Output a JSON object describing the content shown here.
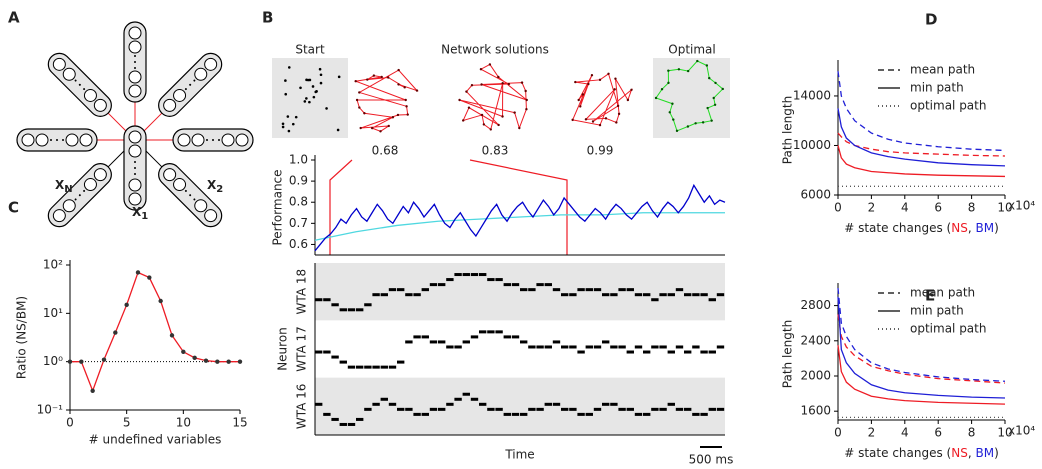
{
  "panel_labels": [
    "A",
    "B",
    "C",
    "D",
    "E"
  ],
  "diagram": {
    "labels": [
      {
        "main": "X",
        "sub": "N′"
      },
      {
        "main": "X",
        "sub": "1"
      },
      {
        "main": "X",
        "sub": "2"
      }
    ]
  },
  "network_solutions": {
    "start": "Start",
    "title": "Network solutions",
    "optimal": "Optimal",
    "scores": [
      0.68,
      0.83,
      0.99
    ]
  },
  "chart_data": [
    {
      "type": "line",
      "ylabel": "Performance",
      "ylim": [
        0.55,
        1.0
      ],
      "yticks": [
        0.6,
        0.7,
        0.8,
        0.9,
        {
          "value": 1,
          "label": "1.0"
        }
      ],
      "series": [
        {
          "color": "#4fd8e0",
          "values": [
            0.62,
            0.66,
            0.69,
            0.71,
            0.72,
            0.73,
            0.74,
            0.74,
            0.75,
            0.75,
            0.75
          ]
        },
        {
          "color": "#0000cc",
          "values": [
            0.57,
            0.6,
            0.63,
            0.65,
            0.68,
            0.72,
            0.7,
            0.74,
            0.77,
            0.73,
            0.71,
            0.75,
            0.79,
            0.76,
            0.72,
            0.7,
            0.74,
            0.78,
            0.75,
            0.8,
            0.77,
            0.73,
            0.76,
            0.79,
            0.74,
            0.7,
            0.68,
            0.72,
            0.75,
            0.71,
            0.67,
            0.64,
            0.68,
            0.72,
            0.76,
            0.79,
            0.74,
            0.71,
            0.75,
            0.78,
            0.8,
            0.76,
            0.73,
            0.77,
            0.81,
            0.78,
            0.74,
            0.77,
            0.82,
            0.79,
            0.76,
            0.73,
            0.71,
            0.74,
            0.77,
            0.75,
            0.72,
            0.76,
            0.79,
            0.77,
            0.74,
            0.72,
            0.75,
            0.78,
            0.8,
            0.76,
            0.73,
            0.77,
            0.8,
            0.78,
            0.75,
            0.78,
            0.82,
            0.88,
            0.84,
            0.8,
            0.83,
            0.79,
            0.81,
            0.8
          ]
        }
      ]
    },
    {
      "type": "raster",
      "ylabel": "Neuron",
      "xlabel": "Time",
      "scale_bar": "500 ms",
      "rows": [
        {
          "label": "WTA 18",
          "values": [
            3,
            3,
            2,
            1,
            1,
            1,
            2,
            4,
            4,
            5,
            5,
            4,
            4,
            5,
            6,
            6,
            7,
            8,
            8,
            8,
            8,
            7,
            7,
            6,
            6,
            5,
            5,
            6,
            6,
            5,
            4,
            4,
            5,
            5,
            5,
            4,
            4,
            5,
            5,
            4,
            4,
            3,
            4,
            4,
            5,
            4,
            4,
            4,
            3,
            4
          ]
        },
        {
          "label": "WTA 17",
          "values": [
            4,
            4,
            3,
            2,
            1,
            1,
            1,
            1,
            1,
            1,
            2,
            6,
            7,
            7,
            6,
            6,
            5,
            5,
            6,
            7,
            8,
            8,
            8,
            7,
            7,
            6,
            5,
            5,
            5,
            6,
            5,
            5,
            4,
            5,
            5,
            6,
            5,
            5,
            4,
            5,
            4,
            5,
            5,
            4,
            5,
            4,
            5,
            4,
            4,
            5
          ]
        },
        {
          "label": "WTA 16",
          "values": [
            5,
            3,
            2,
            1,
            1,
            2,
            4,
            5,
            6,
            5,
            4,
            4,
            3,
            3,
            4,
            4,
            5,
            6,
            7,
            6,
            5,
            4,
            4,
            3,
            3,
            3,
            4,
            4,
            5,
            5,
            4,
            4,
            3,
            3,
            4,
            5,
            5,
            4,
            4,
            3,
            3,
            4,
            4,
            5,
            4,
            4,
            3,
            3,
            4,
            4
          ]
        }
      ]
    },
    {
      "type": "line",
      "xlabel": "# undefined variables",
      "ylabel": "Ratio (NS/BM)",
      "ylog": true,
      "hline": 1,
      "xlim": [
        0,
        15
      ],
      "xticks": [
        0,
        5,
        10,
        15
      ],
      "ylim": [
        0.1,
        100
      ],
      "yticks": [
        {
          "value": 0.1,
          "label": "10⁻¹"
        },
        {
          "value": 1,
          "label": "10⁰"
        },
        {
          "value": 10,
          "label": "10¹"
        },
        {
          "value": 100,
          "label": "10²"
        }
      ],
      "x": [
        0,
        1,
        2,
        3,
        4,
        5,
        6,
        7,
        8,
        9,
        10,
        11,
        12,
        13,
        14,
        15
      ],
      "series": [
        {
          "color": "#ee1c25",
          "markers": true,
          "values": [
            1,
            1,
            0.25,
            1.1,
            4,
            15,
            70,
            55,
            18,
            3.5,
            1.6,
            1.2,
            1.05,
            1,
            1,
            1
          ]
        }
      ]
    },
    {
      "type": "line",
      "ylabel": "Path length",
      "xlabel_parts": [
        {
          "text": "# state changes ("
        },
        {
          "text": "NS",
          "color": "#ee1c25"
        },
        {
          "text": ", "
        },
        {
          "text": "BM",
          "color": "#1f1fd6"
        },
        {
          "text": ")"
        }
      ],
      "xlabel_suffix": "x10⁴",
      "xlim": [
        0,
        10
      ],
      "xticks": [
        0,
        2,
        4,
        6,
        8,
        10
      ],
      "ylim": [
        6000,
        16500
      ],
      "yticks": [
        6000,
        10000,
        14000
      ],
      "legend": [
        {
          "label": "mean path",
          "dash": "6,4"
        },
        {
          "label": "min path",
          "dash": ""
        },
        {
          "label": "optimal path",
          "dash": "1,3"
        }
      ],
      "x": [
        0,
        0.2,
        0.5,
        1,
        2,
        3,
        4,
        6,
        8,
        10
      ],
      "series": [
        {
          "color": "#1f1fd6",
          "dash": "6,4",
          "values": [
            16000,
            14000,
            13000,
            12000,
            11000,
            10500,
            10200,
            9900,
            9700,
            9600
          ]
        },
        {
          "color": "#ee1c25",
          "dash": "6,4",
          "values": [
            11000,
            10700,
            10300,
            10000,
            9700,
            9500,
            9400,
            9300,
            9200,
            9150
          ]
        },
        {
          "color": "#1f1fd6",
          "dash": "",
          "values": [
            13000,
            11500,
            10600,
            10000,
            9400,
            9100,
            8900,
            8600,
            8450,
            8350
          ]
        },
        {
          "color": "#ee1c25",
          "dash": "",
          "values": [
            10000,
            9000,
            8500,
            8200,
            7900,
            7800,
            7700,
            7600,
            7550,
            7500
          ]
        },
        {
          "color": "#555555",
          "dash": "1,3",
          "values": [
            6700,
            6700,
            6700,
            6700,
            6700,
            6700,
            6700,
            6700,
            6700,
            6700
          ]
        }
      ]
    },
    {
      "type": "line",
      "ylabel": "Path length",
      "xlabel_parts": [
        {
          "text": "# state changes ("
        },
        {
          "text": "NS",
          "color": "#ee1c25"
        },
        {
          "text": ", "
        },
        {
          "text": "BM",
          "color": "#1f1fd6"
        },
        {
          "text": ")"
        }
      ],
      "xlabel_suffix": "x10⁴",
      "xlim": [
        0,
        10
      ],
      "xticks": [
        0,
        2,
        4,
        6,
        8,
        10
      ],
      "ylim": [
        1500,
        3000
      ],
      "yticks": [
        1600,
        2000,
        2400,
        2800
      ],
      "legend": [
        {
          "label": "mean path",
          "dash": "6,4"
        },
        {
          "label": "min path",
          "dash": ""
        },
        {
          "label": "optimal path",
          "dash": "1,3"
        }
      ],
      "x": [
        0,
        0.2,
        0.5,
        1,
        2,
        3,
        4,
        6,
        8,
        10
      ],
      "series": [
        {
          "color": "#1f1fd6",
          "dash": "6,4",
          "values": [
            3000,
            2600,
            2450,
            2300,
            2150,
            2080,
            2040,
            1990,
            1960,
            1940
          ]
        },
        {
          "color": "#ee1c25",
          "dash": "6,4",
          "values": [
            2700,
            2450,
            2330,
            2230,
            2110,
            2060,
            2020,
            1970,
            1945,
            1920
          ]
        },
        {
          "color": "#1f1fd6",
          "dash": "",
          "values": [
            2900,
            2300,
            2150,
            2030,
            1900,
            1840,
            1810,
            1780,
            1760,
            1750
          ]
        },
        {
          "color": "#ee1c25",
          "dash": "",
          "values": [
            2350,
            2050,
            1930,
            1850,
            1770,
            1740,
            1720,
            1700,
            1690,
            1680
          ]
        },
        {
          "color": "#555555",
          "dash": "1,3",
          "values": [
            1530,
            1530,
            1530,
            1530,
            1530,
            1530,
            1530,
            1530,
            1530,
            1530
          ]
        }
      ]
    }
  ]
}
